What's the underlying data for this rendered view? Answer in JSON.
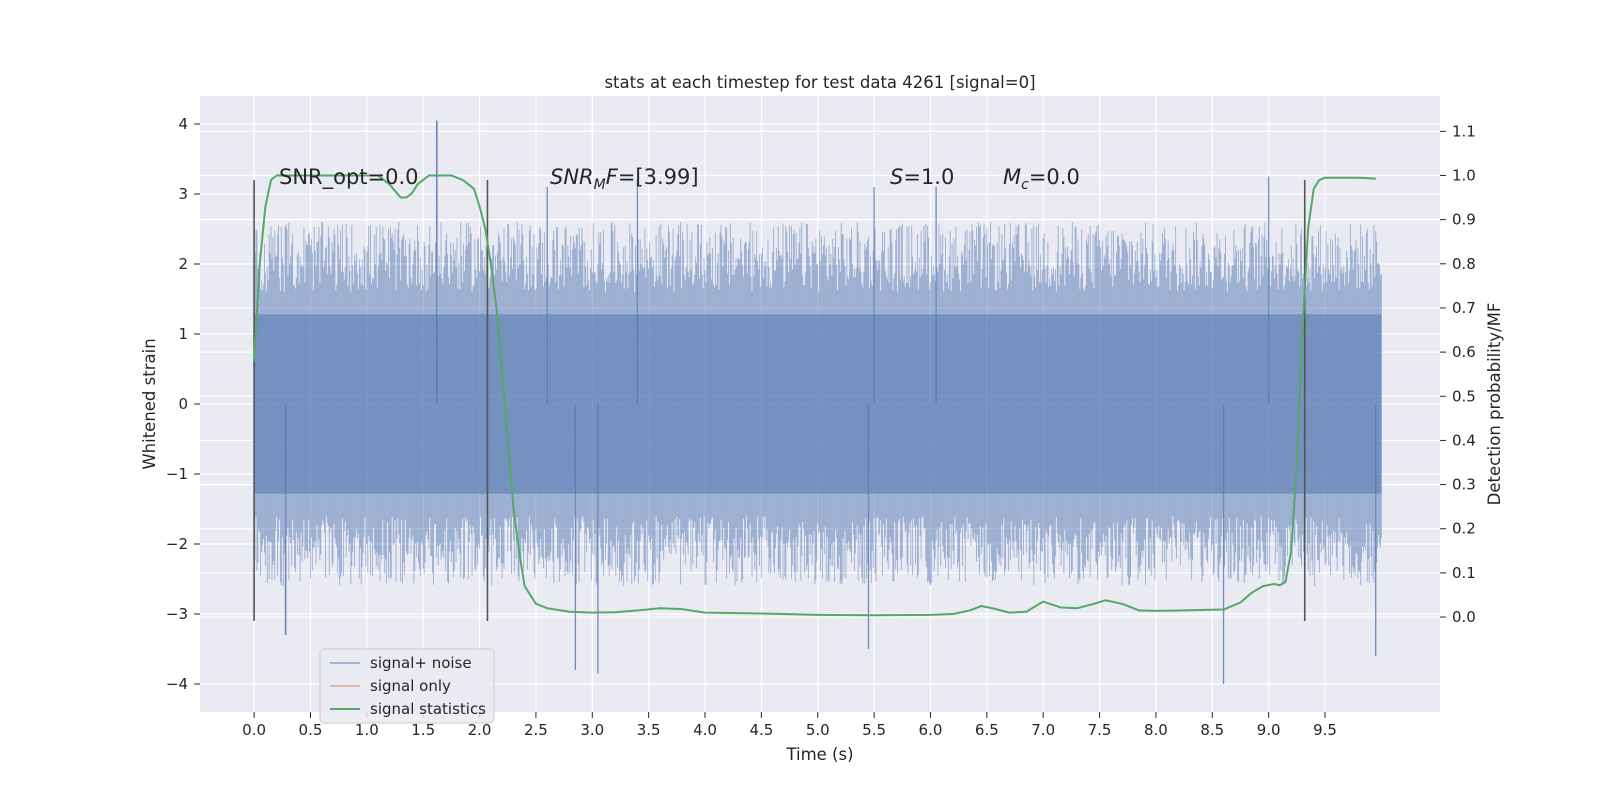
{
  "chart_data": {
    "type": "line",
    "title": "stats at each timestep for test data 4261 [signal=0]",
    "xlabel": "Time (s)",
    "ylabel": "Whitened strain",
    "ylabel_right": "Detection probability/MF",
    "xlim": [
      -0.48,
      10.52
    ],
    "ylim": [
      -4.4,
      4.4
    ],
    "ylim_right": [
      -0.215,
      1.18
    ],
    "x_ticks": [
      0.0,
      0.5,
      1.0,
      1.5,
      2.0,
      2.5,
      3.0,
      3.5,
      4.0,
      4.5,
      5.0,
      5.5,
      6.0,
      6.5,
      7.0,
      7.5,
      8.0,
      8.5,
      9.0,
      9.5
    ],
    "x_tick_labels": [
      "0.0",
      "0.5",
      "1.0",
      "1.5",
      "2.0",
      "2.5",
      "3.0",
      "3.5",
      "4.0",
      "4.5",
      "5.0",
      "5.5",
      "6.0",
      "6.5",
      "7.0",
      "7.5",
      "8.0",
      "8.5",
      "9.0",
      "9.5"
    ],
    "y_ticks": [
      4,
      3,
      2,
      1,
      0,
      -1,
      -2,
      -3,
      -4
    ],
    "y_tick_labels": [
      "4",
      "3",
      "2",
      "1",
      "0",
      "−1",
      "−2",
      "−3",
      "−4"
    ],
    "y_right_ticks": [
      1.1,
      1.0,
      0.9,
      0.8,
      0.7,
      0.6,
      0.5,
      0.4,
      0.3,
      0.2,
      0.1,
      0.0
    ],
    "y_right_tick_labels": [
      "1.1",
      "1.0",
      "0.9",
      "0.8",
      "0.7",
      "0.6",
      "0.5",
      "0.4",
      "0.3",
      "0.2",
      "0.1",
      "0.0"
    ],
    "grid": true,
    "legend_position": "lower-left",
    "legend": [
      {
        "label": "signal+ noise",
        "color": "#4c72b0"
      },
      {
        "label": "signal only",
        "color": "#dd8452"
      },
      {
        "label": "signal statistics",
        "color": "#55a868"
      }
    ],
    "annotations": {
      "snr_opt": "SNR_opt=0.0",
      "snr_mf_main": "SNR",
      "snr_mf_sub": "M",
      "snr_mf_rest": "F",
      "snr_mf_value": "=[3.99]",
      "s_symbol": "S",
      "s_value": "=1.0",
      "mc_symbol": "M",
      "mc_sub": "c",
      "mc_value": "=0.0"
    },
    "vertical_markers": [
      {
        "x": 0.0,
        "y_range": [
          -3.1,
          3.2
        ]
      },
      {
        "x": 2.07,
        "y_range": [
          -3.1,
          3.2
        ]
      },
      {
        "x": 9.32,
        "y_range": [
          -3.1,
          3.2
        ]
      }
    ],
    "noise_series": {
      "name": "signal+ noise",
      "color": "#4c72b0",
      "alpha": 0.5,
      "x_range": [
        0.0,
        10.0
      ],
      "envelope": 1.28,
      "typical_peak": [
        1.6,
        2.6
      ],
      "peak_events": [
        {
          "x": 1.62,
          "y": 4.05
        },
        {
          "x": 2.85,
          "y": -3.8
        },
        {
          "x": 3.05,
          "y": -3.85
        },
        {
          "x": 9.0,
          "y": 3.25
        },
        {
          "x": 8.6,
          "y": -4.0
        },
        {
          "x": 9.95,
          "y": -3.6
        },
        {
          "x": 5.45,
          "y": -3.5
        },
        {
          "x": 3.4,
          "y": 3.2
        },
        {
          "x": 5.5,
          "y": 3.1
        },
        {
          "x": 6.05,
          "y": 3.1
        },
        {
          "x": 2.6,
          "y": 3.1
        },
        {
          "x": 0.28,
          "y": -3.3
        }
      ]
    },
    "series": [
      {
        "name": "signal statistics",
        "color": "#55a868",
        "axis": "right",
        "x": [
          0.0,
          0.05,
          0.1,
          0.15,
          0.2,
          0.3,
          0.5,
          0.8,
          1.0,
          1.1,
          1.2,
          1.3,
          1.35,
          1.4,
          1.45,
          1.55,
          1.65,
          1.75,
          1.85,
          1.95,
          2.0,
          2.05,
          2.1,
          2.15,
          2.2,
          2.25,
          2.3,
          2.35,
          2.4,
          2.5,
          2.6,
          2.8,
          3.0,
          3.2,
          3.4,
          3.6,
          3.8,
          4.0,
          4.5,
          5.0,
          5.5,
          6.0,
          6.2,
          6.35,
          6.45,
          6.55,
          6.7,
          6.85,
          7.0,
          7.15,
          7.3,
          7.45,
          7.55,
          7.7,
          7.85,
          8.0,
          8.2,
          8.4,
          8.6,
          8.75,
          8.85,
          8.95,
          9.05,
          9.1,
          9.15,
          9.2,
          9.25,
          9.3,
          9.35,
          9.4,
          9.45,
          9.5,
          9.6,
          9.8,
          9.95
        ],
        "values": [
          0.58,
          0.8,
          0.93,
          0.99,
          1.0,
          1.0,
          1.0,
          1.0,
          1.0,
          1.0,
          0.98,
          0.95,
          0.95,
          0.96,
          0.98,
          1.0,
          1.0,
          1.0,
          0.99,
          0.97,
          0.93,
          0.88,
          0.8,
          0.7,
          0.55,
          0.4,
          0.25,
          0.15,
          0.07,
          0.03,
          0.02,
          0.012,
          0.01,
          0.011,
          0.015,
          0.02,
          0.018,
          0.01,
          0.008,
          0.005,
          0.004,
          0.005,
          0.007,
          0.015,
          0.025,
          0.02,
          0.01,
          0.012,
          0.035,
          0.022,
          0.02,
          0.03,
          0.038,
          0.03,
          0.015,
          0.014,
          0.015,
          0.016,
          0.017,
          0.033,
          0.055,
          0.07,
          0.075,
          0.072,
          0.08,
          0.15,
          0.35,
          0.65,
          0.88,
          0.97,
          0.99,
          0.995,
          0.995,
          0.995,
          0.993
        ]
      },
      {
        "name": "signal only",
        "color": "#dd8452",
        "axis": "left",
        "x": [],
        "values": []
      }
    ]
  }
}
